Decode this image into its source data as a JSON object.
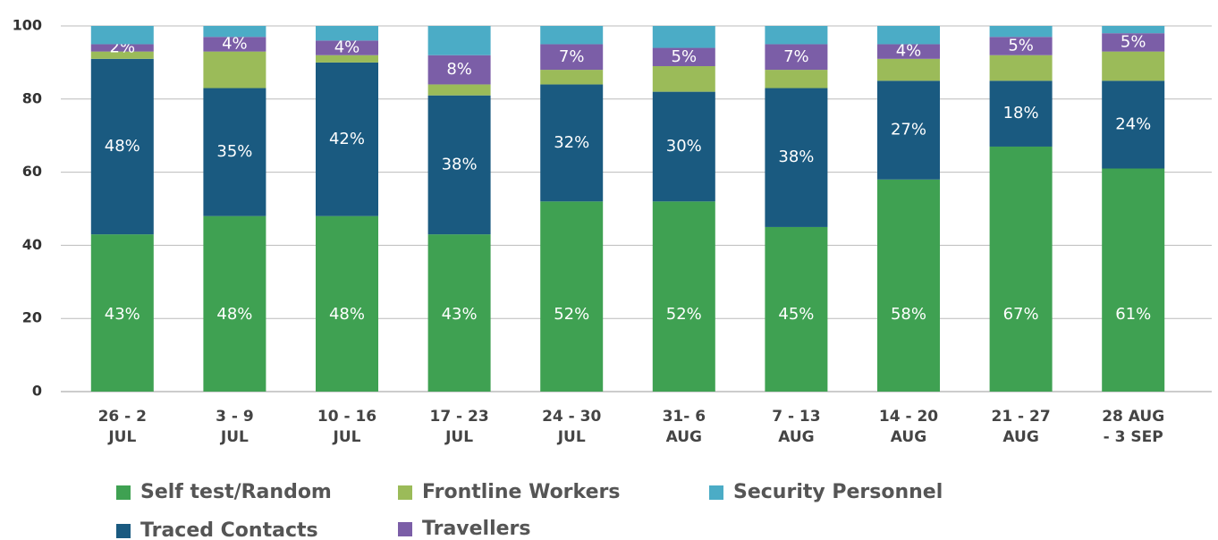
{
  "chart_data": {
    "type": "stacked_bar",
    "categories": [
      [
        "26 - 2",
        "JUL"
      ],
      [
        "3 - 9",
        "JUL"
      ],
      [
        "10 - 16",
        "JUL"
      ],
      [
        "17 - 23",
        "JUL"
      ],
      [
        "24 - 30",
        "JUL"
      ],
      [
        "31- 6",
        "AUG"
      ],
      [
        "7 - 13",
        "AUG"
      ],
      [
        "14 - 20",
        "AUG"
      ],
      [
        "21 - 27",
        "AUG"
      ],
      [
        "28 AUG",
        "- 3 SEP"
      ]
    ],
    "series": [
      {
        "name": "Self test/Random",
        "color": "#3fa152",
        "values": [
          43,
          48,
          48,
          43,
          52,
          52,
          45,
          58,
          67,
          61
        ],
        "value_labels": [
          "43%",
          "48%",
          "48%",
          "43%",
          "52%",
          "52%",
          "45%",
          "58%",
          "67%",
          "61%"
        ]
      },
      {
        "name": "Traced Contacts",
        "color": "#1a5a80",
        "values": [
          48,
          35,
          42,
          38,
          32,
          30,
          38,
          27,
          18,
          24
        ],
        "value_labels": [
          "48%",
          "35%",
          "42%",
          "38%",
          "32%",
          "30%",
          "38%",
          "27%",
          "18%",
          "24%"
        ]
      },
      {
        "name": "Frontline Workers",
        "color": "#9bbb59",
        "values": [
          2,
          10,
          2,
          3,
          4,
          7,
          5,
          6,
          7,
          8
        ]
      },
      {
        "name": "Travellers",
        "color": "#7b5ea7",
        "values": [
          2,
          4,
          4,
          8,
          7,
          5,
          7,
          4,
          5,
          5
        ],
        "value_labels": [
          "2%",
          "4%",
          "4%",
          "8%",
          "7%",
          "5%",
          "7%",
          "4%",
          "5%",
          "5%"
        ]
      },
      {
        "name": "Security Personnel",
        "color": "#4bacc6",
        "values": [
          5,
          3,
          4,
          8,
          5,
          6,
          5,
          5,
          3,
          2
        ]
      }
    ],
    "ylim": [
      0,
      100
    ],
    "yticks": [
      0,
      20,
      40,
      60,
      80,
      100
    ],
    "grid": true
  }
}
